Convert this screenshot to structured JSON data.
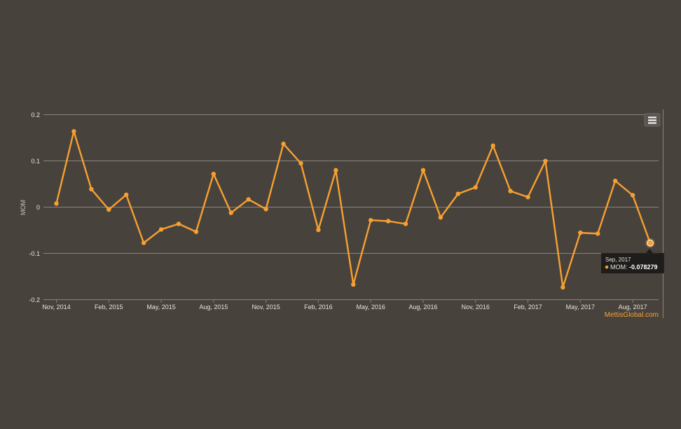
{
  "chart_data": {
    "type": "line",
    "ylabel": "MOM",
    "ylim": [
      -0.2,
      0.2
    ],
    "yticks": [
      "0.2",
      "0.1",
      "0",
      "-0.1",
      "-0.2"
    ],
    "grid": true,
    "xtick_labels": [
      "Nov, 2014",
      "Feb, 2015",
      "May, 2015",
      "Aug, 2015",
      "Nov, 2015",
      "Feb, 2016",
      "May, 2016",
      "Aug, 2016",
      "Nov, 2016",
      "Feb, 2017",
      "May, 2017",
      "Aug, 2017"
    ],
    "x": [
      "Nov, 2014",
      "Dec, 2014",
      "Jan, 2015",
      "Feb, 2015",
      "Mar, 2015",
      "Apr, 2015",
      "May, 2015",
      "Jun, 2015",
      "Jul, 2015",
      "Aug, 2015",
      "Sep, 2015",
      "Oct, 2015",
      "Nov, 2015",
      "Dec, 2015",
      "Jan, 2016",
      "Feb, 2016",
      "Mar, 2016",
      "Apr, 2016",
      "May, 2016",
      "Jun, 2016",
      "Jul, 2016",
      "Aug, 2016",
      "Sep, 2016",
      "Oct, 2016",
      "Nov, 2016",
      "Dec, 2016",
      "Jan, 2017",
      "Feb, 2017",
      "Mar, 2017",
      "Apr, 2017",
      "May, 2017",
      "Jun, 2017",
      "Jul, 2017",
      "Aug, 2017",
      "Sep, 2017"
    ],
    "series": [
      {
        "name": "MOM",
        "color": "#f7a030",
        "values": [
          0.007,
          0.163,
          0.038,
          -0.006,
          0.026,
          -0.078,
          -0.049,
          -0.037,
          -0.054,
          0.071,
          -0.013,
          0.016,
          -0.005,
          0.136,
          0.094,
          -0.05,
          0.079,
          -0.168,
          -0.029,
          -0.031,
          -0.037,
          0.079,
          -0.023,
          0.028,
          0.042,
          0.132,
          0.034,
          0.021,
          0.099,
          -0.174,
          -0.056,
          -0.058,
          0.056,
          0.025,
          -0.078279
        ]
      }
    ],
    "tooltip": {
      "title": "Sep, 2017",
      "series_label": "MOM:",
      "value": "-0.078279"
    },
    "credit": "MettisGlobal.com"
  },
  "colors": {
    "background": "#48423d",
    "line": "#f7a030",
    "grid": "#8a847f",
    "text": "#e6e2dd",
    "credit": "#f7a030"
  },
  "icons": {
    "menu": "hamburger-menu-icon"
  }
}
